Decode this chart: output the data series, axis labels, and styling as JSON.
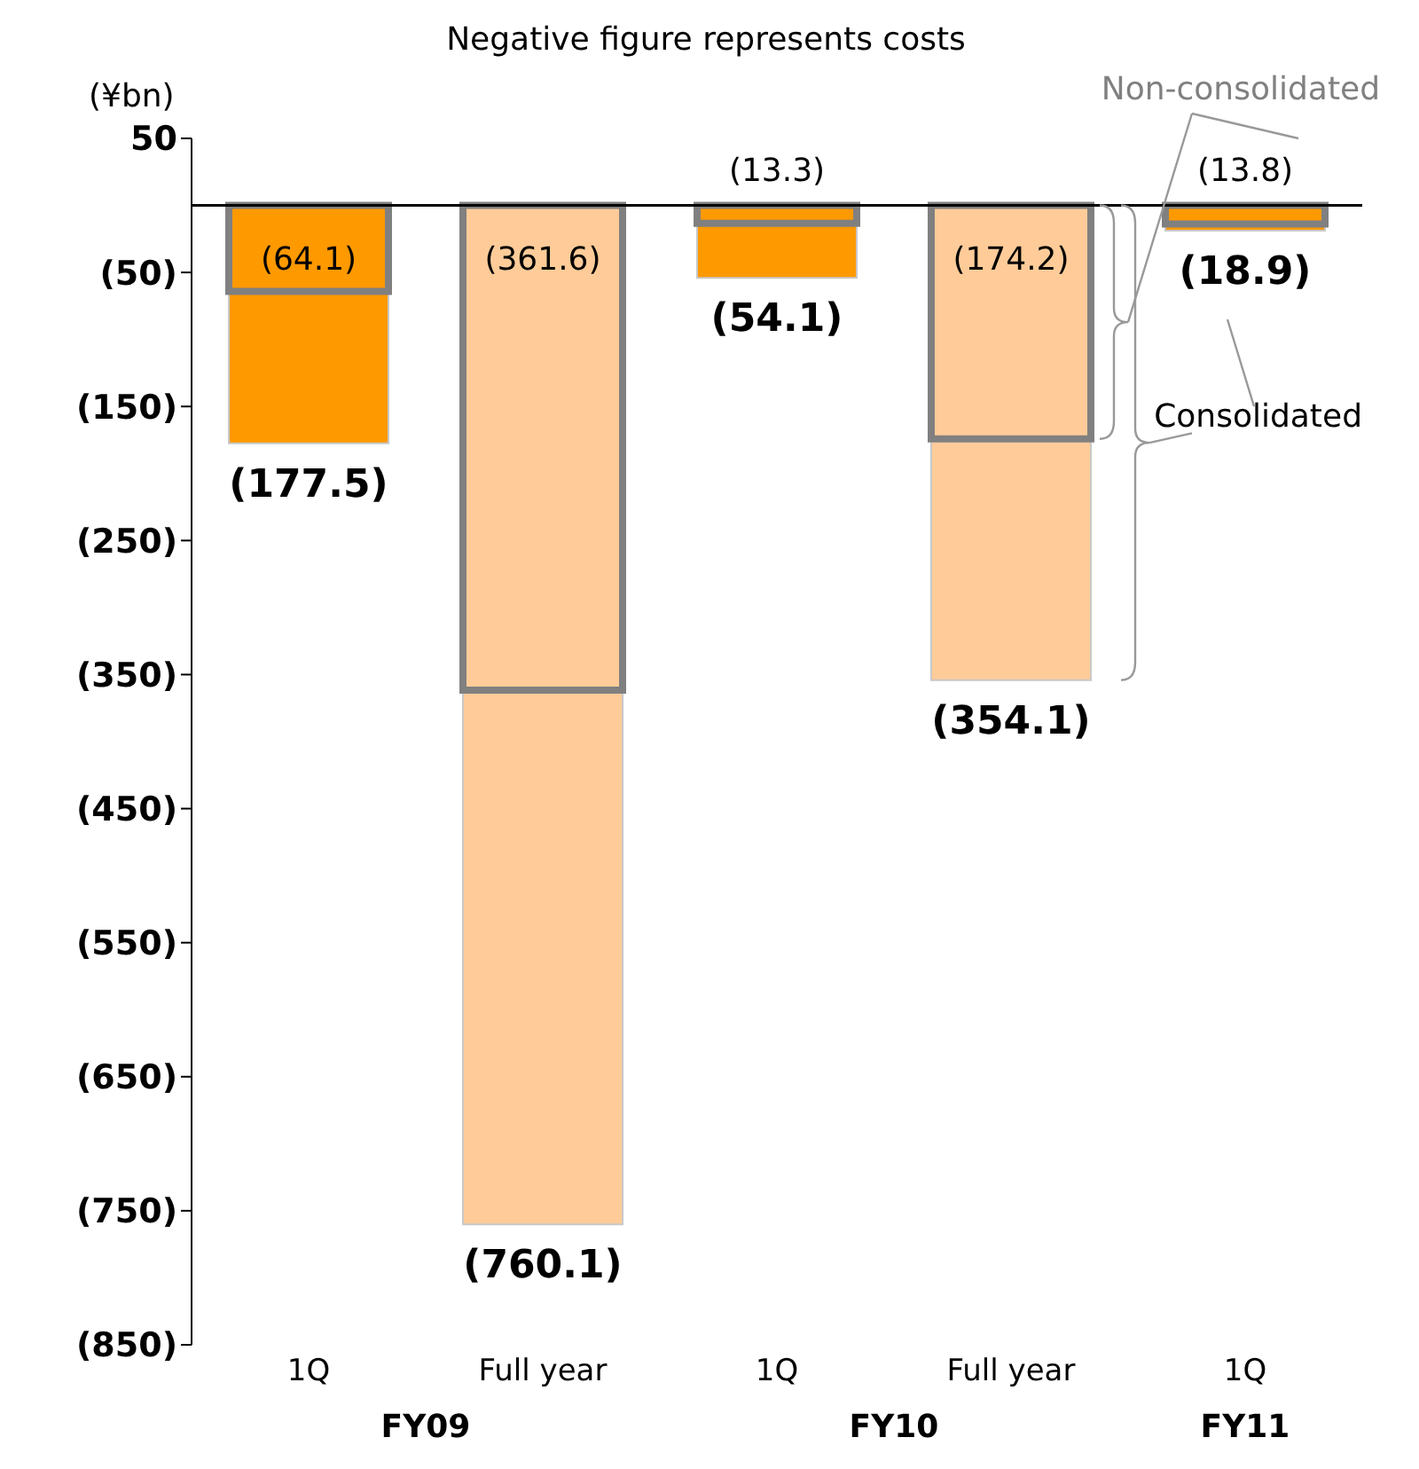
{
  "chart_data": {
    "type": "bar",
    "title": "Negative figure represents costs",
    "ylabel": "(¥bn)",
    "categories": [
      "1Q",
      "Full year",
      "1Q",
      "Full year",
      "1Q"
    ],
    "series": [
      {
        "name": "Consolidated",
        "color": "#ff9900",
        "colors": [
          "#ff9900",
          "#ffcc99",
          "#ff9900",
          "#ffcc99",
          "#ff9900"
        ],
        "values": [
          -177.5,
          -760.1,
          -54.1,
          -354.1,
          -18.9
        ],
        "value_labels": [
          "(177.5)",
          "(760.1)",
          "(54.1)",
          "(354.1)",
          "(18.9)"
        ]
      },
      {
        "name": "Non-consolidated",
        "type": "bar",
        "color": "#808080",
        "values": [
          -64.1,
          -361.6,
          -13.3,
          -174.2,
          -13.8
        ],
        "value_labels": [
          "(64.1)",
          "(361.6)",
          "(13.3)",
          "(174.2)",
          "(13.8)"
        ]
      }
    ],
    "ylim": [
      -850,
      50
    ],
    "yticks": [
      50,
      {
        "value": -50,
        "label": "(50)"
      },
      {
        "value": -150,
        "label": "(150)"
      },
      {
        "value": -250,
        "label": "(250)"
      },
      {
        "value": -350,
        "label": "(350)"
      },
      {
        "value": -450,
        "label": "(450)"
      },
      {
        "value": -550,
        "label": "(550)"
      },
      {
        "value": -650,
        "label": "(650)"
      },
      {
        "value": -750,
        "label": "(750)"
      },
      {
        "value": -850,
        "label": "(850)"
      }
    ],
    "ref_lines": [
      {
        "axis": "y",
        "value": 0,
        "label": null,
        "color": "#000000"
      }
    ],
    "annotations": [
      "FY09",
      "FY10",
      "FY11"
    ]
  }
}
